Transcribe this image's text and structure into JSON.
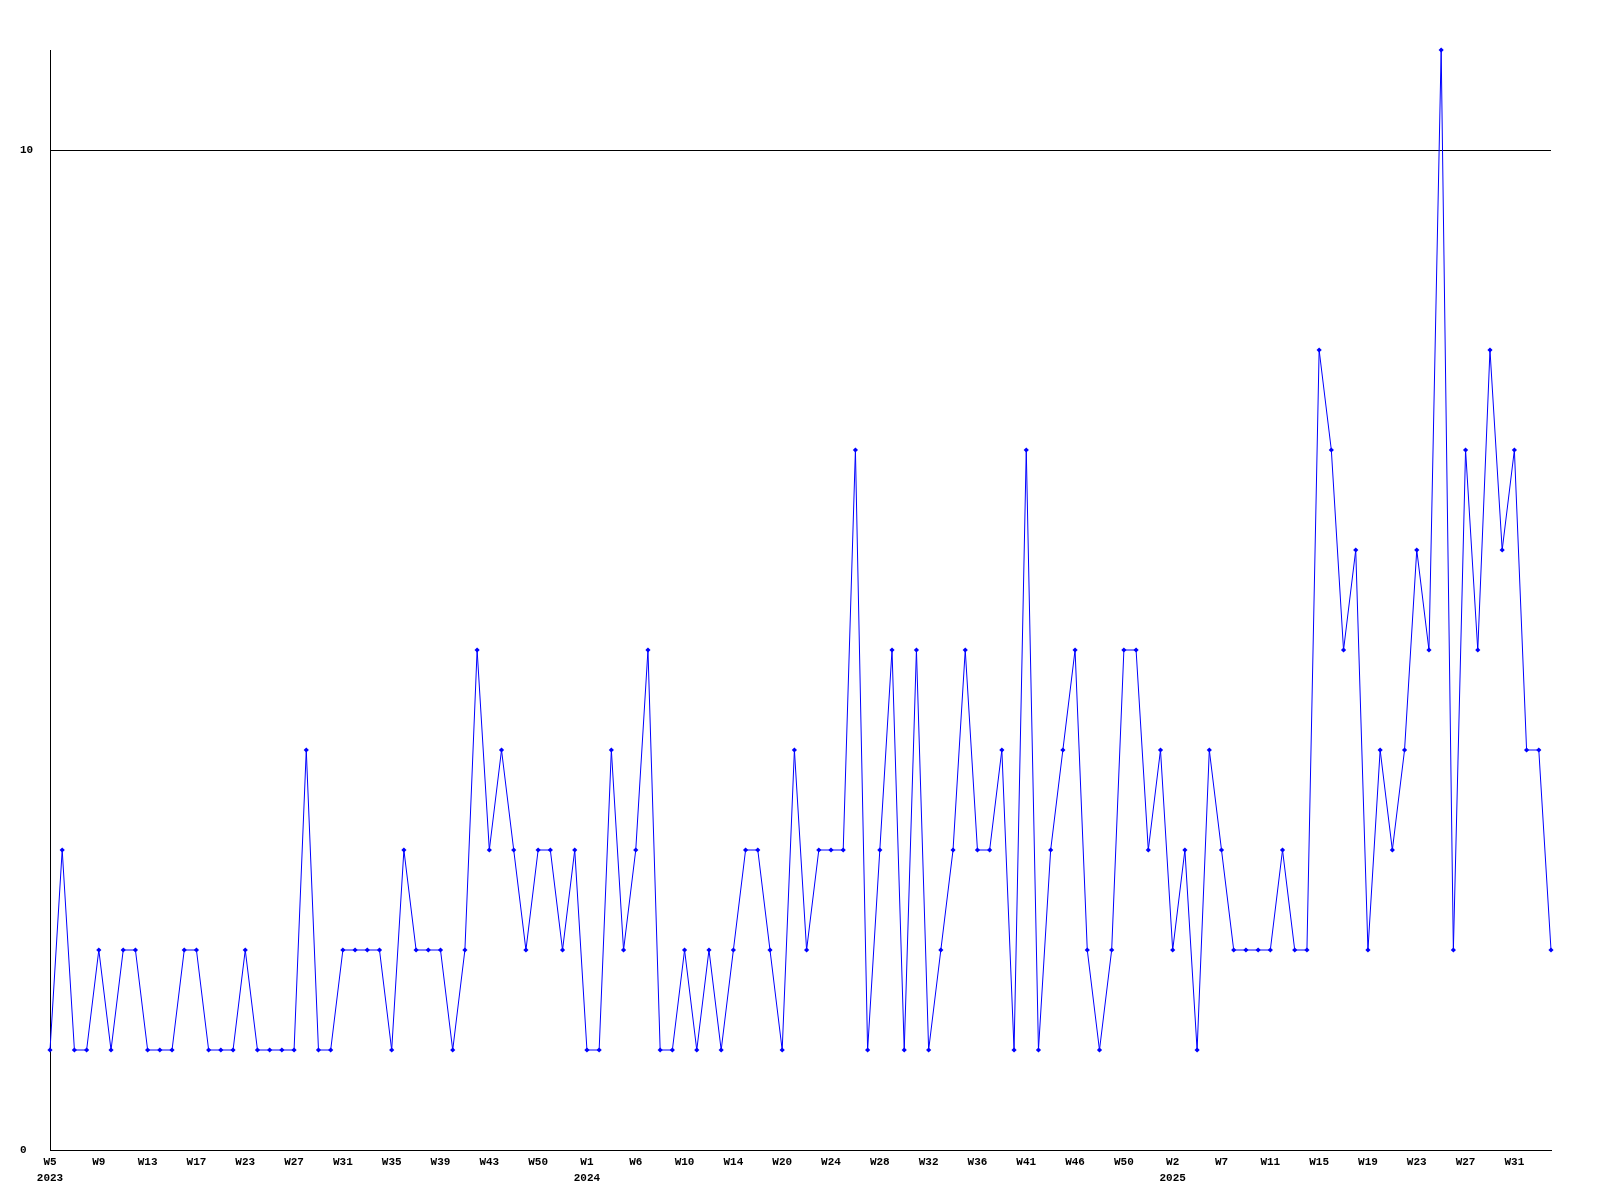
{
  "chart_data": {
    "type": "line",
    "categories": [
      "W5\n2023",
      null,
      null,
      null,
      "W9",
      null,
      null,
      null,
      "W13",
      null,
      null,
      null,
      "W17",
      null,
      null,
      null,
      "W23",
      null,
      null,
      null,
      "W27",
      null,
      null,
      null,
      "W31",
      null,
      null,
      null,
      "W35",
      null,
      null,
      null,
      "W39",
      null,
      null,
      null,
      "W43",
      null,
      null,
      null,
      "W50",
      null,
      null,
      null,
      "W1\n2024",
      null,
      null,
      null,
      "W6",
      null,
      null,
      null,
      "W10",
      null,
      null,
      null,
      "W14",
      null,
      null,
      null,
      "W20",
      null,
      null,
      null,
      "W24",
      null,
      null,
      null,
      "W28",
      null,
      null,
      null,
      "W32",
      null,
      null,
      null,
      "W36",
      null,
      null,
      null,
      "W41",
      null,
      null,
      null,
      "W46",
      null,
      null,
      null,
      "W50",
      null,
      null,
      null,
      "W2\n2025",
      null,
      null,
      null,
      "W7",
      null,
      null,
      null,
      "W11",
      null,
      null,
      null,
      "W15",
      null,
      null,
      null,
      "W19",
      null,
      null,
      null,
      "W23",
      null,
      null,
      null,
      "W27",
      null,
      null,
      null,
      "W31",
      null,
      null,
      null
    ],
    "series": [
      {
        "color": "#0000ff",
        "values": [
          1,
          3,
          1,
          1,
          2,
          1,
          2,
          2,
          1,
          1,
          1,
          2,
          2,
          1,
          1,
          1,
          2,
          1,
          1,
          1,
          1,
          4,
          1,
          1,
          2,
          2,
          2,
          2,
          1,
          3,
          2,
          2,
          2,
          1,
          2,
          5,
          3,
          4,
          3,
          2,
          3,
          3,
          2,
          3,
          1,
          1,
          4,
          2,
          3,
          5,
          1,
          1,
          2,
          1,
          2,
          1,
          2,
          3,
          3,
          2,
          1,
          4,
          2,
          3,
          3,
          3,
          7,
          1,
          3,
          5,
          1,
          5,
          1,
          2,
          3,
          5,
          3,
          3,
          4,
          1,
          7,
          1,
          3,
          4,
          5,
          2,
          1,
          2,
          5,
          5,
          3,
          4,
          2,
          3,
          1,
          4,
          3,
          2,
          2,
          2,
          2,
          3,
          2,
          2,
          8,
          7,
          5,
          6,
          2,
          4,
          3,
          4,
          6,
          5,
          11,
          2,
          7,
          5,
          8,
          6,
          7,
          4,
          4,
          2
        ]
      }
    ],
    "ylim": [
      0,
      11
    ],
    "yticks": [
      0,
      10
    ],
    "grid": "y",
    "legend": false,
    "marker": "diamond",
    "line_style": "solid"
  }
}
